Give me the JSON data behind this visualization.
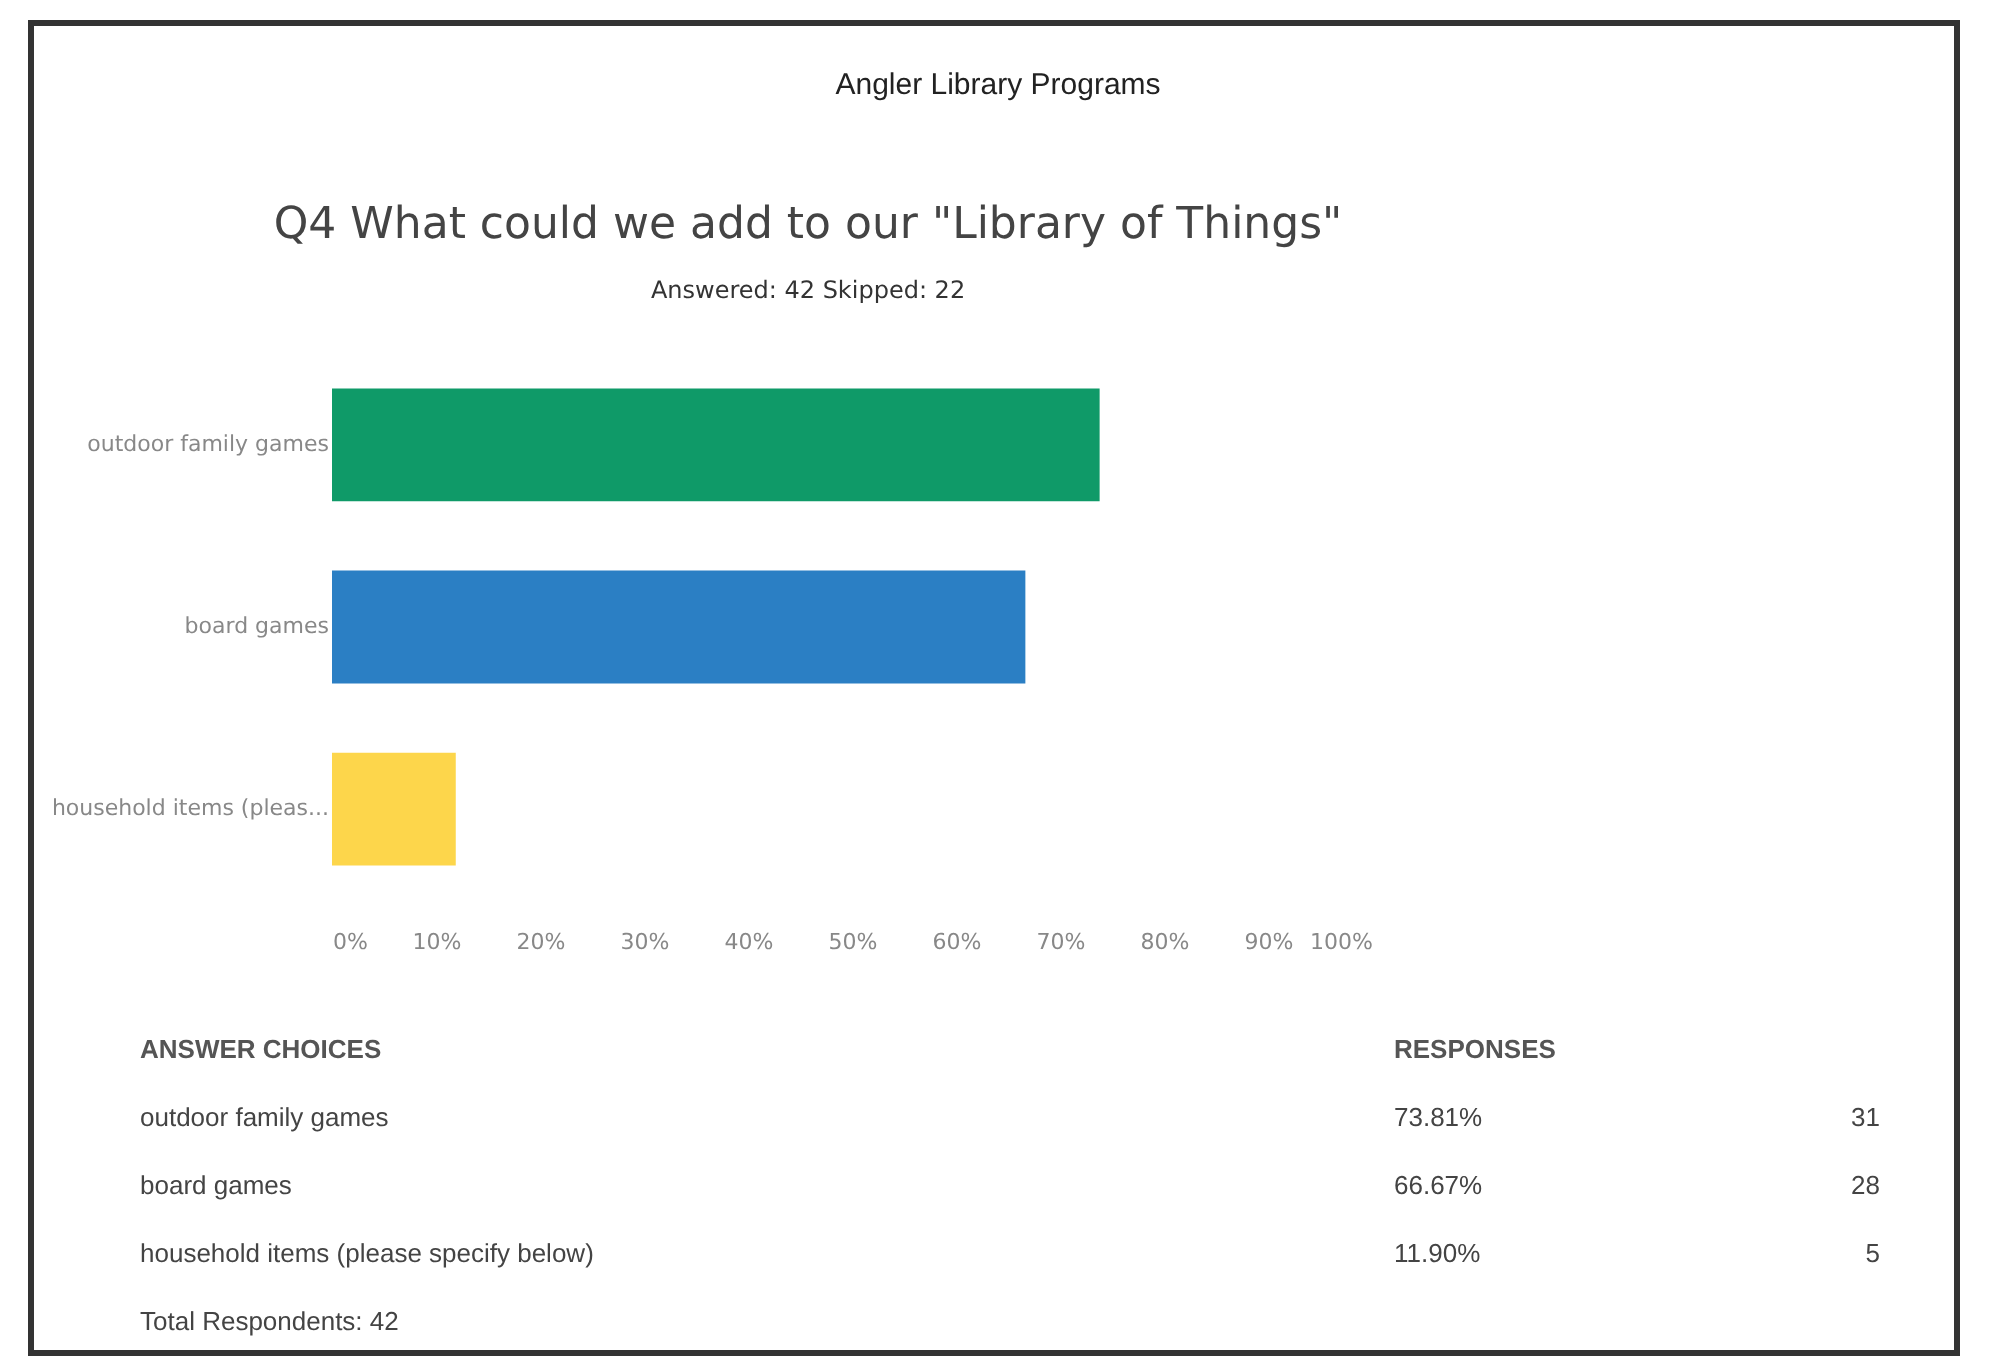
{
  "chart_data": {
    "type": "bar",
    "orientation": "horizontal",
    "title": "Q4 What could we add to our \"Library of Things\"",
    "subtitle": "Answered: 42    Skipped: 22",
    "categories": [
      "outdoor family games",
      "board games",
      "household items (pleas..."
    ],
    "values": [
      73.81,
      66.67,
      11.9
    ],
    "colors": [
      "#0f9a68",
      "#2b7fc4",
      "#fdd64b"
    ],
    "xlim": [
      0,
      100
    ],
    "xticks": [
      {
        "value": 0,
        "label": "0%"
      },
      {
        "value": 10,
        "label": "10%"
      },
      {
        "value": 20,
        "label": "20%"
      },
      {
        "value": 30,
        "label": "30%"
      },
      {
        "value": 40,
        "label": "40%"
      },
      {
        "value": 50,
        "label": "50%"
      },
      {
        "value": 60,
        "label": "60%"
      },
      {
        "value": 70,
        "label": "70%"
      },
      {
        "value": 80,
        "label": "80%"
      },
      {
        "value": 90,
        "label": "90%"
      },
      {
        "value": 100,
        "label": "100%"
      }
    ],
    "annotations": [
      "Angler Library Programs",
      "ANSWER CHOICES",
      "RESPONSES",
      "outdoor family games",
      "73.81%",
      "31",
      "board games",
      "66.67%",
      "28",
      "household items (please specify below)",
      "11.90%",
      "5",
      "Total Respondents: 42"
    ]
  }
}
